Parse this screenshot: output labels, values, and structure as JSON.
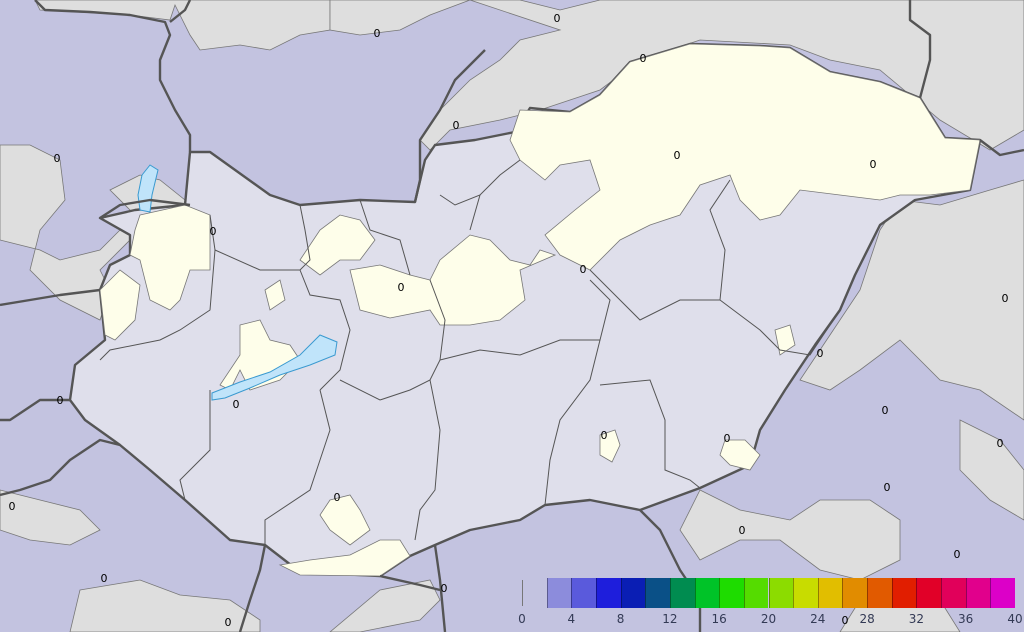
{
  "map": {
    "contour_label": "0",
    "colors": {
      "outside_low": "#c3c3e0",
      "outside_nodata": "#dedede",
      "country_interior": "#dfdfeb",
      "trace_area": "#fefeea",
      "lake": "#c0e4fa",
      "country_border": "#555555",
      "county_border": "#555555"
    }
  },
  "legend": {
    "ticks": [
      "0",
      "4",
      "8",
      "12",
      "16",
      "20",
      "24",
      "28",
      "32",
      "36",
      "40"
    ],
    "range": [
      0,
      40
    ],
    "colors": [
      "#8c8cdc",
      "#5a5adc",
      "#1e1edc",
      "#0a1eb4",
      "#0a5087",
      "#008c50",
      "#00c328",
      "#1edc00",
      "#55dc00",
      "#8cdc00",
      "#c8dc00",
      "#e1be00",
      "#e18c00",
      "#e15a00",
      "#e11e00",
      "#e10028",
      "#e1005a",
      "#e1008c",
      "#dc00c8"
    ]
  }
}
